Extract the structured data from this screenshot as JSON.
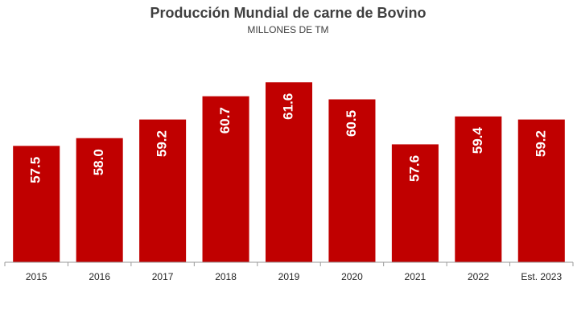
{
  "chart_data": {
    "type": "bar",
    "title": "Producción Mundial de carne de Bovino",
    "subtitle": "MILLONES DE TM",
    "categories": [
      "2015",
      "2016",
      "2017",
      "2018",
      "2019",
      "2020",
      "2021",
      "2022",
      "Est. 2023"
    ],
    "values": [
      57.5,
      58.0,
      59.2,
      60.7,
      61.6,
      60.5,
      57.6,
      59.4,
      59.2
    ],
    "value_labels": [
      "57.5",
      "58.0",
      "59.2",
      "60.7",
      "61.6",
      "60.5",
      "57.6",
      "59.4",
      "59.2"
    ],
    "color": "#c00000",
    "ylim": [
      50,
      64
    ]
  }
}
